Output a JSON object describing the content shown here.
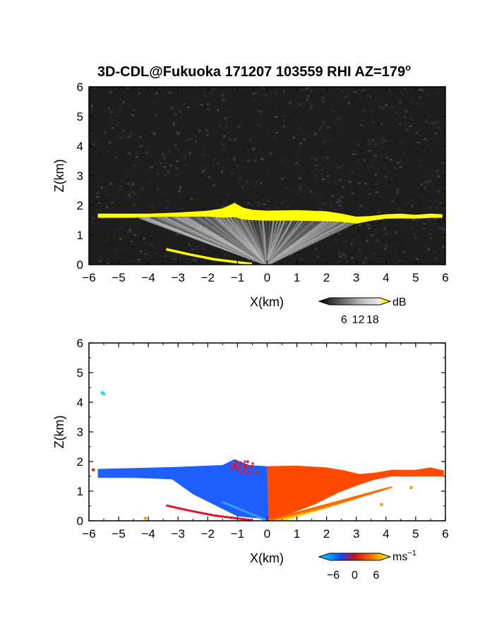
{
  "title_main": "3D-CDL@Fukuoka 171207 103559 RHI AZ=179",
  "title_sup": "o",
  "colors": {
    "background": "#ffffff",
    "noise_dark": "#1e1e1e",
    "aerosol_layer": "#ffff00",
    "negative_velocity": "#1f5fff",
    "positive_velocity": "#ff4a00"
  },
  "chart_data": [
    {
      "type": "heatmap",
      "name": "backscatter",
      "xlabel": "X(km)",
      "ylabel": "Z(km)",
      "xlim": [
        -6,
        6
      ],
      "ylim": [
        0,
        6
      ],
      "xticks": [
        -6,
        -5,
        -4,
        -3,
        -2,
        -1,
        0,
        1,
        2,
        3,
        4,
        5,
        6
      ],
      "yticks": [
        0,
        1,
        2,
        3,
        4,
        5,
        6
      ],
      "colorbar": {
        "unit": "dB",
        "ticks": [
          6,
          12,
          18
        ],
        "range": [
          0,
          21
        ],
        "colormap": "gray-to-yellow"
      },
      "layer_top_km": [
        [
          -5.7,
          1.72
        ],
        [
          -5.0,
          1.72
        ],
        [
          -4.5,
          1.72
        ],
        [
          -4.0,
          1.72
        ],
        [
          -3.0,
          1.76
        ],
        [
          -2.0,
          1.82
        ],
        [
          -1.5,
          1.9
        ],
        [
          -1.1,
          2.08
        ],
        [
          -0.8,
          1.92
        ],
        [
          -0.5,
          1.85
        ],
        [
          0.0,
          1.82
        ],
        [
          1.0,
          1.84
        ],
        [
          2.0,
          1.8
        ],
        [
          2.5,
          1.72
        ],
        [
          3.0,
          1.62
        ],
        [
          3.5,
          1.64
        ],
        [
          4.0,
          1.7
        ],
        [
          4.5,
          1.72
        ],
        [
          5.0,
          1.68
        ],
        [
          5.5,
          1.72
        ],
        [
          5.9,
          1.7
        ]
      ],
      "layer_bottom_km": [
        [
          -5.7,
          1.58
        ],
        [
          -5.0,
          1.58
        ],
        [
          -4.5,
          1.58
        ],
        [
          -4.0,
          1.6
        ],
        [
          -3.0,
          1.62
        ],
        [
          -2.0,
          1.62
        ],
        [
          -1.5,
          1.58
        ],
        [
          -1.1,
          1.6
        ],
        [
          -0.8,
          1.52
        ],
        [
          -0.5,
          1.5
        ],
        [
          0.0,
          1.48
        ],
        [
          1.0,
          1.48
        ],
        [
          2.0,
          1.46
        ],
        [
          2.5,
          1.44
        ],
        [
          3.0,
          1.38
        ],
        [
          3.5,
          1.48
        ],
        [
          4.0,
          1.55
        ],
        [
          4.5,
          1.56
        ],
        [
          5.0,
          1.55
        ],
        [
          5.5,
          1.58
        ],
        [
          5.9,
          1.58
        ]
      ],
      "low_beam_streak_km": [
        [
          -3.4,
          0.52
        ],
        [
          -2.6,
          0.34
        ],
        [
          -1.8,
          0.18
        ],
        [
          -1.0,
          0.08
        ],
        [
          -0.5,
          0.02
        ]
      ]
    },
    {
      "type": "heatmap",
      "name": "doppler_velocity",
      "xlabel": "X(km)",
      "ylabel": "Z(km)",
      "xlim": [
        -6,
        6
      ],
      "ylim": [
        0,
        6
      ],
      "xticks": [
        -6,
        -5,
        -4,
        -3,
        -2,
        -1,
        0,
        1,
        2,
        3,
        4,
        5,
        6
      ],
      "yticks": [
        0,
        1,
        2,
        3,
        4,
        5,
        6
      ],
      "colorbar": {
        "unit": "ms",
        "unit_sup": "−1",
        "ticks": [
          "−6",
          "0",
          "6"
        ],
        "range": [
          -7,
          7
        ],
        "colormap": "cyan-blue-red-yellow"
      },
      "negative_region_km": [
        [
          -5.7,
          1.55
        ],
        [
          -5.7,
          1.75
        ],
        [
          -4.5,
          1.78
        ],
        [
          -3.0,
          1.82
        ],
        [
          -1.5,
          1.88
        ],
        [
          -1.1,
          2.08
        ],
        [
          -0.6,
          1.88
        ],
        [
          0.0,
          1.84
        ],
        [
          0.05,
          0.05
        ],
        [
          -1.0,
          0.15
        ],
        [
          -2.5,
          0.9
        ],
        [
          -3.2,
          1.4
        ],
        [
          -4.5,
          1.45
        ],
        [
          -5.7,
          1.45
        ]
      ],
      "positive_region_km": [
        [
          0.0,
          1.84
        ],
        [
          1.0,
          1.86
        ],
        [
          2.0,
          1.8
        ],
        [
          2.6,
          1.7
        ],
        [
          3.1,
          1.58
        ],
        [
          3.6,
          1.62
        ],
        [
          4.2,
          1.72
        ],
        [
          5.0,
          1.72
        ],
        [
          5.5,
          1.8
        ],
        [
          5.95,
          1.7
        ],
        [
          5.95,
          1.5
        ],
        [
          5.0,
          1.5
        ],
        [
          4.2,
          1.5
        ],
        [
          3.6,
          1.38
        ],
        [
          3.0,
          1.18
        ],
        [
          2.4,
          0.95
        ],
        [
          1.6,
          0.55
        ],
        [
          0.8,
          0.25
        ],
        [
          0.05,
          0.03
        ]
      ],
      "outlier_points_km": [
        [
          -5.55,
          4.32
        ],
        [
          -5.5,
          4.28
        ],
        [
          -5.85,
          1.72
        ],
        [
          -4.1,
          0.08
        ],
        [
          3.85,
          0.55
        ],
        [
          4.85,
          1.12
        ]
      ]
    }
  ]
}
